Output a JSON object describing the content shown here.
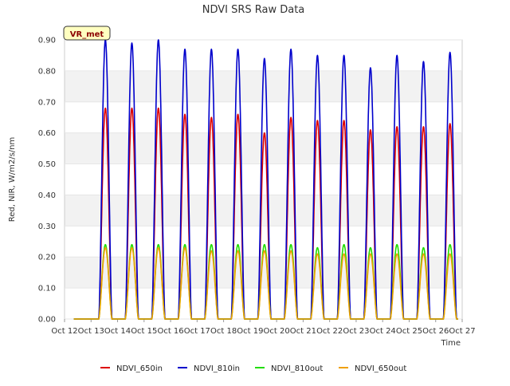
{
  "chart_data": {
    "type": "line",
    "title": "NDVI SRS Raw Data",
    "xlabel": "Time",
    "ylabel": "Red, NIR, W/m2/s/nm",
    "ylim": [
      0,
      0.9
    ],
    "xlim": [
      12,
      27
    ],
    "yticks": [
      0,
      0.1,
      0.2,
      0.3,
      0.4,
      0.5,
      0.6,
      0.7,
      0.8,
      0.9
    ],
    "ytick_labels": [
      "0.00",
      "0.10",
      "0.20",
      "0.30",
      "0.40",
      "0.50",
      "0.60",
      "0.70",
      "0.80",
      "0.90"
    ],
    "xticks": [
      12,
      13,
      14,
      15,
      16,
      17,
      18,
      19,
      20,
      21,
      22,
      23,
      24,
      25,
      26,
      27
    ],
    "xtick_labels": [
      "Oct 12",
      "Oct 13",
      "Oct 14",
      "Oct 15",
      "Oct 16",
      "Oct 17",
      "Oct 18",
      "Oct 19",
      "Oct 20",
      "Oct 21",
      "Oct 22",
      "Oct 23",
      "Oct 24",
      "Oct 25",
      "Oct 26",
      "Oct 27"
    ],
    "annotation": "VR_met",
    "grid": "horizontal bands",
    "legend_position": "bottom",
    "days": [
      13,
      14,
      15,
      16,
      17,
      18,
      19,
      20,
      21,
      22,
      23,
      24,
      25,
      26
    ],
    "series": [
      {
        "name": "NDVI_650in",
        "color": "#dd0000",
        "daily_peak": [
          0.68,
          0.68,
          0.68,
          0.66,
          0.65,
          0.66,
          0.6,
          0.65,
          0.64,
          0.64,
          0.61,
          0.62,
          0.62,
          0.63
        ]
      },
      {
        "name": "NDVI_810in",
        "color": "#0000cc",
        "daily_peak": [
          0.9,
          0.89,
          0.9,
          0.87,
          0.87,
          0.87,
          0.84,
          0.87,
          0.85,
          0.85,
          0.81,
          0.85,
          0.83,
          0.86
        ]
      },
      {
        "name": "NDVI_810out",
        "color": "#22dd00",
        "daily_peak": [
          0.24,
          0.24,
          0.24,
          0.24,
          0.24,
          0.24,
          0.24,
          0.24,
          0.23,
          0.24,
          0.23,
          0.24,
          0.23,
          0.24
        ]
      },
      {
        "name": "NDVI_650out",
        "color": "#f0a000",
        "daily_peak": [
          0.23,
          0.23,
          0.23,
          0.23,
          0.22,
          0.22,
          0.22,
          0.22,
          0.21,
          0.21,
          0.21,
          0.21,
          0.21,
          0.21
        ]
      }
    ]
  }
}
